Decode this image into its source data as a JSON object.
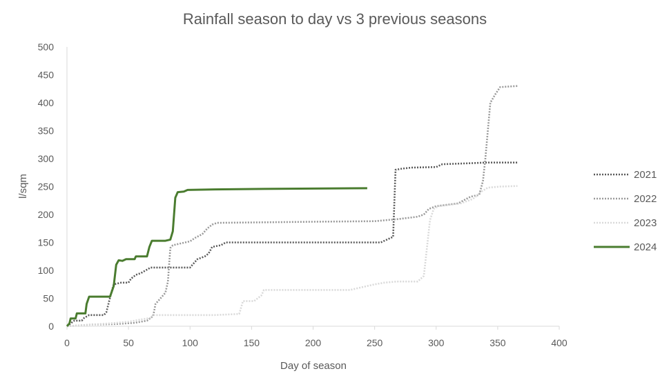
{
  "chart_data": {
    "type": "line",
    "title": "Rainfall season to day vs 3 previous seasons",
    "xlabel": "Day of season",
    "ylabel": "l/sqm",
    "xlim": [
      0,
      400
    ],
    "ylim": [
      0,
      500
    ],
    "xticks": [
      0,
      50,
      100,
      150,
      200,
      250,
      300,
      350,
      400
    ],
    "yticks": [
      0,
      50,
      100,
      150,
      200,
      250,
      300,
      350,
      400,
      450,
      500
    ],
    "grid": false,
    "legend_position": "right",
    "series": [
      {
        "name": "2021",
        "color": "#595959",
        "style": "dotted",
        "points": [
          [
            0,
            0
          ],
          [
            3,
            5
          ],
          [
            6,
            10
          ],
          [
            12,
            10
          ],
          [
            14,
            15
          ],
          [
            18,
            20
          ],
          [
            30,
            20
          ],
          [
            32,
            25
          ],
          [
            36,
            60
          ],
          [
            38,
            75
          ],
          [
            44,
            78
          ],
          [
            50,
            78
          ],
          [
            52,
            85
          ],
          [
            56,
            92
          ],
          [
            60,
            95
          ],
          [
            64,
            100
          ],
          [
            68,
            105
          ],
          [
            85,
            105
          ],
          [
            92,
            105
          ],
          [
            100,
            105
          ],
          [
            106,
            120
          ],
          [
            112,
            125
          ],
          [
            115,
            130
          ],
          [
            118,
            142
          ],
          [
            125,
            145
          ],
          [
            129,
            150
          ],
          [
            200,
            150
          ],
          [
            255,
            150
          ],
          [
            260,
            155
          ],
          [
            265,
            160
          ],
          [
            267,
            280
          ],
          [
            272,
            282
          ],
          [
            280,
            284
          ],
          [
            300,
            285
          ],
          [
            305,
            290
          ],
          [
            330,
            292
          ],
          [
            340,
            293
          ],
          [
            366,
            293
          ]
        ]
      },
      {
        "name": "2022",
        "color": "#999999",
        "style": "dotted",
        "points": [
          [
            0,
            0
          ],
          [
            20,
            3
          ],
          [
            40,
            4
          ],
          [
            55,
            6
          ],
          [
            65,
            10
          ],
          [
            70,
            18
          ],
          [
            72,
            40
          ],
          [
            76,
            50
          ],
          [
            80,
            60
          ],
          [
            82,
            80
          ],
          [
            84,
            140
          ],
          [
            86,
            145
          ],
          [
            92,
            148
          ],
          [
            100,
            152
          ],
          [
            104,
            158
          ],
          [
            110,
            165
          ],
          [
            114,
            175
          ],
          [
            118,
            182
          ],
          [
            122,
            185
          ],
          [
            200,
            187
          ],
          [
            250,
            188
          ],
          [
            260,
            190
          ],
          [
            270,
            192
          ],
          [
            285,
            196
          ],
          [
            290,
            200
          ],
          [
            294,
            210
          ],
          [
            300,
            215
          ],
          [
            318,
            220
          ],
          [
            322,
            225
          ],
          [
            328,
            232
          ],
          [
            335,
            235
          ],
          [
            338,
            260
          ],
          [
            340,
            300
          ],
          [
            342,
            350
          ],
          [
            344,
            400
          ],
          [
            348,
            415
          ],
          [
            352,
            428
          ],
          [
            366,
            430
          ]
        ]
      },
      {
        "name": "2023",
        "color": "#d9d9d9",
        "style": "dotted",
        "points": [
          [
            0,
            0
          ],
          [
            35,
            5
          ],
          [
            50,
            8
          ],
          [
            60,
            12
          ],
          [
            68,
            15
          ],
          [
            70,
            20
          ],
          [
            100,
            20
          ],
          [
            120,
            20
          ],
          [
            140,
            22
          ],
          [
            143,
            45
          ],
          [
            152,
            45
          ],
          [
            158,
            55
          ],
          [
            160,
            65
          ],
          [
            230,
            65
          ],
          [
            240,
            70
          ],
          [
            250,
            75
          ],
          [
            258,
            78
          ],
          [
            268,
            80
          ],
          [
            285,
            80
          ],
          [
            290,
            90
          ],
          [
            292,
            130
          ],
          [
            295,
            190
          ],
          [
            298,
            210
          ],
          [
            302,
            215
          ],
          [
            320,
            220
          ],
          [
            330,
            228
          ],
          [
            336,
            240
          ],
          [
            342,
            248
          ],
          [
            352,
            250
          ],
          [
            366,
            251
          ]
        ]
      },
      {
        "name": "2024",
        "color": "#4a7c2f",
        "style": "solid",
        "points": [
          [
            0,
            0
          ],
          [
            2,
            5
          ],
          [
            3,
            14
          ],
          [
            7,
            14
          ],
          [
            8,
            23
          ],
          [
            15,
            23
          ],
          [
            16,
            40
          ],
          [
            18,
            53
          ],
          [
            35,
            53
          ],
          [
            38,
            72
          ],
          [
            40,
            110
          ],
          [
            42,
            118
          ],
          [
            45,
            117
          ],
          [
            48,
            120
          ],
          [
            55,
            120
          ],
          [
            56,
            125
          ],
          [
            65,
            125
          ],
          [
            67,
            142
          ],
          [
            69,
            153
          ],
          [
            80,
            153
          ],
          [
            84,
            155
          ],
          [
            86,
            170
          ],
          [
            87,
            200
          ],
          [
            88,
            230
          ],
          [
            90,
            240
          ],
          [
            95,
            241
          ],
          [
            98,
            244
          ],
          [
            120,
            245
          ],
          [
            170,
            246
          ],
          [
            244,
            247
          ]
        ]
      }
    ]
  }
}
